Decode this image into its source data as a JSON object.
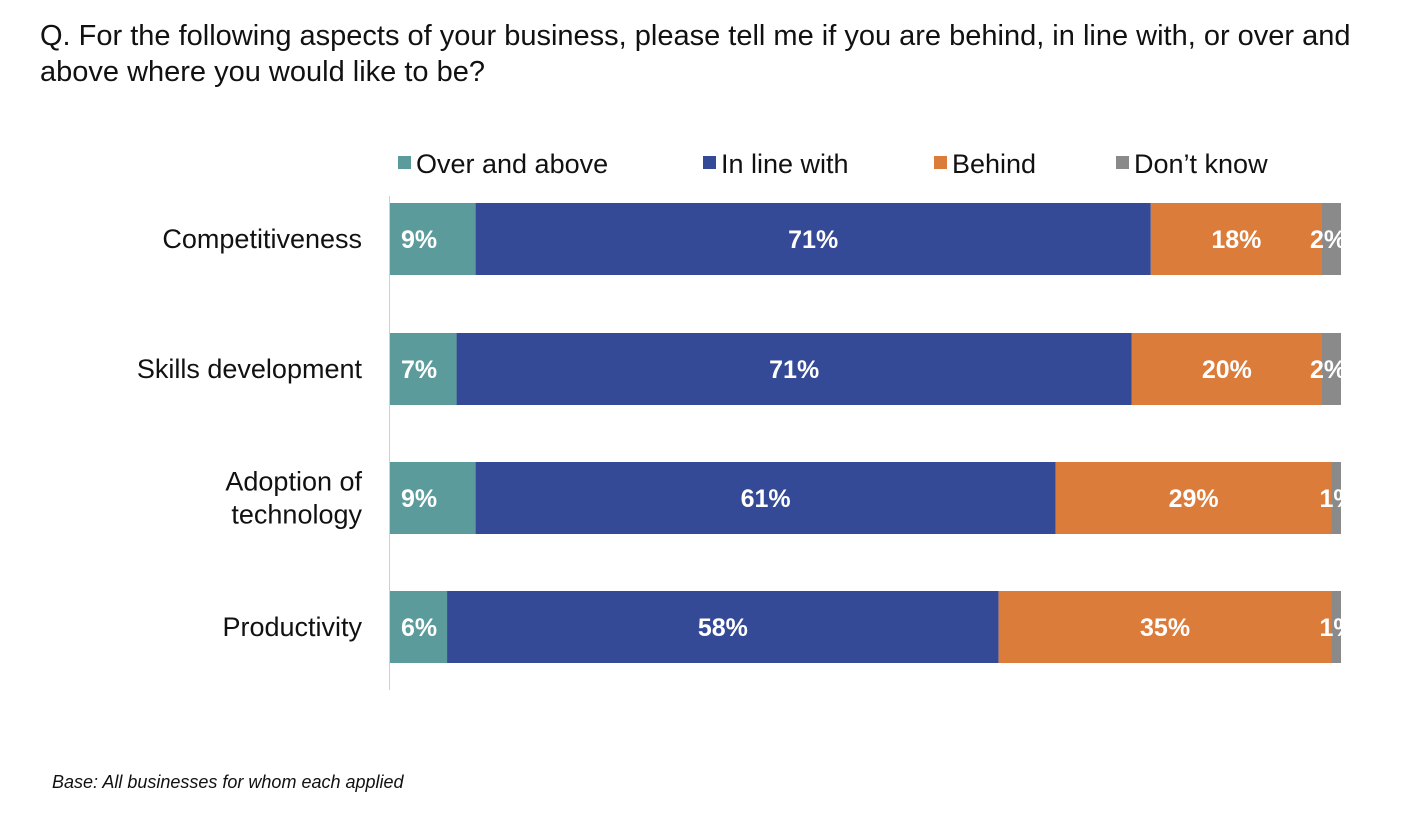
{
  "question": "Q. For the following aspects of your business, please tell me if you are behind, in line with, or over and above where you would like to be?",
  "footnote": "Base: All businesses for whom each applied",
  "chart_data": {
    "type": "bar",
    "orientation": "horizontal",
    "stacked": true,
    "title": "",
    "xlabel": "",
    "ylabel": "",
    "xlim": [
      0,
      100
    ],
    "grid": false,
    "legend": "top",
    "categories": [
      "Competitiveness",
      "Skills development",
      "Adoption of technology",
      "Productivity"
    ],
    "category_lines": [
      [
        "Competitiveness"
      ],
      [
        "Skills development"
      ],
      [
        "Adoption of",
        "technology"
      ],
      [
        "Productivity"
      ]
    ],
    "series": [
      {
        "name": "Over and above",
        "color": "#5B9B9B",
        "values": [
          9,
          7,
          9,
          6
        ],
        "labels": [
          "9%",
          "7%",
          "9%",
          "6%"
        ]
      },
      {
        "name": "In line with",
        "color": "#344A96",
        "values": [
          71,
          71,
          61,
          58
        ],
        "labels": [
          "71%",
          "71%",
          "61%",
          "58%"
        ]
      },
      {
        "name": "Behind",
        "color": "#DB7C3B",
        "values": [
          18,
          20,
          29,
          35
        ],
        "labels": [
          "18%",
          "20%",
          "29%",
          "35%"
        ]
      },
      {
        "name": "Don’t know",
        "color": "#8A8A8A",
        "values": [
          2,
          2,
          1,
          1
        ],
        "labels": [
          "2%",
          "2%",
          "1%",
          "1%"
        ]
      }
    ]
  }
}
